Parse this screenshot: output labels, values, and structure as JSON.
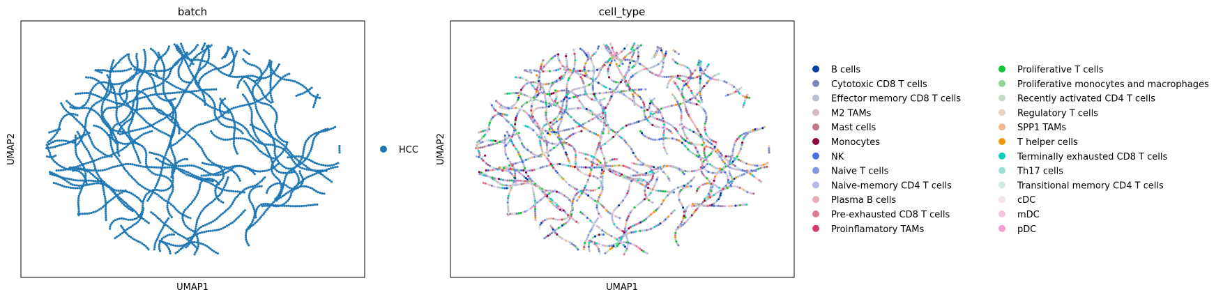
{
  "chart_data": [
    {
      "type": "scatter",
      "title": "batch",
      "xlabel": "UMAP1",
      "ylabel": "UMAP2",
      "grid": false,
      "ticks": false,
      "legend_position": "right",
      "series": [
        {
          "name": "HCC",
          "color": "#1f77b4"
        }
      ],
      "embedding_shape": "elongated worm-like curved strands filling a roughly circular region"
    },
    {
      "type": "scatter",
      "title": "cell_type",
      "xlabel": "UMAP1",
      "ylabel": "UMAP2",
      "grid": false,
      "ticks": false,
      "legend_position": "right",
      "legend_columns": 2,
      "series": [
        {
          "name": "B cells",
          "color": "#023fa5"
        },
        {
          "name": "Cytotoxic CD8 T cells",
          "color": "#7d87b9"
        },
        {
          "name": "Effector memory CD8 T cells",
          "color": "#bec1d4"
        },
        {
          "name": "M2 TAMs",
          "color": "#d6bcc0"
        },
        {
          "name": "Mast cells",
          "color": "#bb7784"
        },
        {
          "name": "Monocytes",
          "color": "#8e063b"
        },
        {
          "name": "NK",
          "color": "#4a6fe3"
        },
        {
          "name": "Naive T cells",
          "color": "#8595e1"
        },
        {
          "name": "Naive-memory CD4 T cells",
          "color": "#b5bbe3"
        },
        {
          "name": "Plasma B cells",
          "color": "#e6afb9"
        },
        {
          "name": "Pre-exhausted CD8 T cells",
          "color": "#e07b91"
        },
        {
          "name": "Proinflamatory TAMs",
          "color": "#d33f6a"
        },
        {
          "name": "Proliferative T cells",
          "color": "#11c638"
        },
        {
          "name": "Proliferative monocytes and macrophages",
          "color": "#8dd593"
        },
        {
          "name": "Recently activated CD4 T cells",
          "color": "#c6dec7"
        },
        {
          "name": "Regulatory T cells",
          "color": "#ead3c6"
        },
        {
          "name": "SPP1 TAMs",
          "color": "#f0b98d"
        },
        {
          "name": "T helper cells",
          "color": "#ef9708"
        },
        {
          "name": "Terminally exhausted CD8 T cells",
          "color": "#0fcfc0"
        },
        {
          "name": "Th17 cells",
          "color": "#9cded6"
        },
        {
          "name": "Transitional memory CD4 T cells",
          "color": "#d5eae7"
        },
        {
          "name": "cDC",
          "color": "#f3e1eb"
        },
        {
          "name": "mDC",
          "color": "#f6c4e1"
        },
        {
          "name": "pDC",
          "color": "#f79cd4"
        }
      ],
      "embedding_shape": "same worm-like strands as batch panel, points colored by cell type (mixed)"
    }
  ]
}
